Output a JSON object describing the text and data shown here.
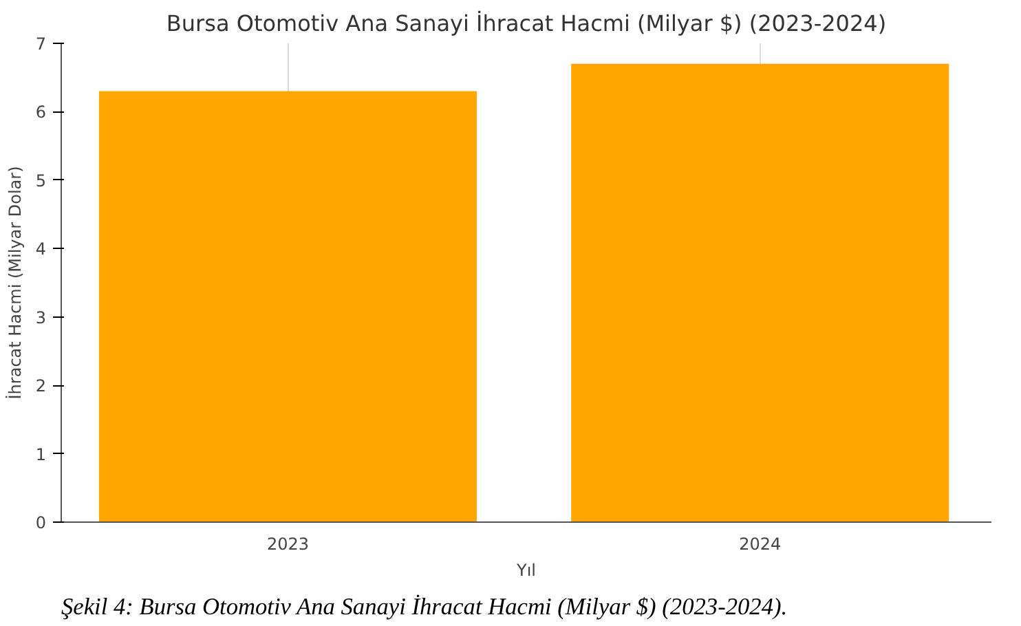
{
  "chart_data": {
    "type": "bar",
    "title": "Bursa Otomotiv Ana Sanayi İhracat Hacmi (Milyar $) (2023-2024)",
    "xlabel": "Yıl",
    "ylabel": "İhracat Hacmi (Milyar Dolar)",
    "categories": [
      "2023",
      "2024"
    ],
    "values": [
      6.3,
      6.7
    ],
    "color": "#ffa500",
    "ylim": [
      0,
      7
    ],
    "yticks": [
      0,
      1,
      2,
      3,
      4,
      5,
      6,
      7
    ],
    "grid": "x",
    "annotations": [
      "Şekil 4: Bursa Otomotiv Ana Sanayi İhracat Hacmi (Milyar $) (2023-2024)."
    ]
  }
}
